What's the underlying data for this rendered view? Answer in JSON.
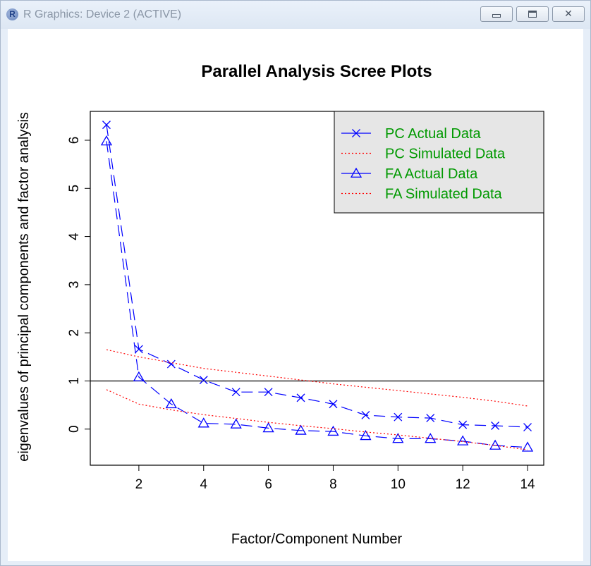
{
  "window": {
    "title": "R Graphics: Device 2 (ACTIVE)",
    "app_icon_letter": "R"
  },
  "chart_data": {
    "type": "line",
    "title": "Parallel Analysis Scree Plots",
    "xlabel": "Factor/Component Number",
    "ylabel": "eigenvalues of principal components and factor analysis",
    "xlim": [
      0.5,
      14.5
    ],
    "ylim": [
      -0.75,
      6.6
    ],
    "x_ticks": [
      2,
      4,
      6,
      8,
      10,
      12,
      14
    ],
    "y_ticks": [
      0,
      1,
      2,
      3,
      4,
      5,
      6
    ],
    "reference_line_y": 1,
    "grid": false,
    "legend_position": "top-right",
    "x": [
      1,
      2,
      3,
      4,
      5,
      6,
      7,
      8,
      9,
      10,
      11,
      12,
      13,
      14
    ],
    "series": [
      {
        "name": "PC  Actual Data",
        "color": "#0000ff",
        "marker": "x",
        "line": "dashed",
        "values": [
          6.32,
          1.66,
          1.35,
          1.02,
          0.77,
          0.77,
          0.65,
          0.52,
          0.29,
          0.25,
          0.23,
          0.09,
          0.07,
          0.04
        ]
      },
      {
        "name": " PC  Simulated Data",
        "color": "#ff0000",
        "marker": "none",
        "line": "dotted",
        "values": [
          1.65,
          1.5,
          1.38,
          1.26,
          1.18,
          1.1,
          1.02,
          0.94,
          0.87,
          0.8,
          0.73,
          0.66,
          0.58,
          0.48
        ]
      },
      {
        "name": "FA  Actual Data",
        "color": "#0000ff",
        "marker": "triangle",
        "line": "dashed",
        "values": [
          5.98,
          1.08,
          0.52,
          0.12,
          0.1,
          0.02,
          -0.03,
          -0.05,
          -0.14,
          -0.2,
          -0.2,
          -0.25,
          -0.34,
          -0.38
        ]
      },
      {
        "name": " FA  Simulated Data",
        "color": "#ff0000",
        "marker": "none",
        "line": "dotted",
        "values": [
          0.82,
          0.52,
          0.4,
          0.3,
          0.22,
          0.14,
          0.07,
          0.01,
          -0.06,
          -0.12,
          -0.19,
          -0.26,
          -0.34,
          -0.43
        ]
      }
    ]
  },
  "colors": {
    "legend_text": "#009900",
    "legend_bg": "#e6e6e6",
    "axis": "#000000"
  }
}
